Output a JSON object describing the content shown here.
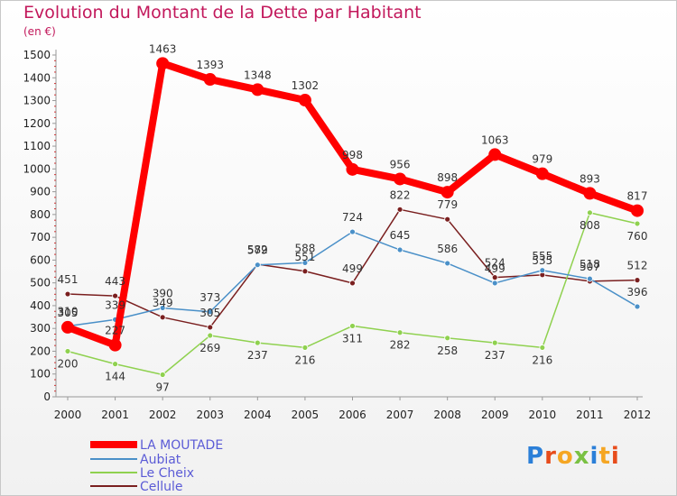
{
  "chart_data": {
    "type": "line",
    "title": "Evolution du Montant de la Dette par Habitant",
    "ylabel": "(en €)",
    "x": [
      "2000",
      "2001",
      "2002",
      "2003",
      "2004",
      "2005",
      "2006",
      "2007",
      "2008",
      "2009",
      "2010",
      "2011",
      "2012"
    ],
    "ylim": [
      0,
      1500
    ],
    "yticks": [
      0,
      100,
      200,
      300,
      400,
      500,
      600,
      700,
      800,
      900,
      1000,
      1100,
      1200,
      1300,
      1400,
      1500
    ],
    "grid": false,
    "legend_position": "bottom-left",
    "series": [
      {
        "name": "LA MOUTADE",
        "color": "#ff0000",
        "values": [
          305,
          227,
          1463,
          1393,
          1348,
          1302,
          998,
          956,
          898,
          1063,
          979,
          893,
          817
        ]
      },
      {
        "name": "Aubiat",
        "color": "#4a90c8",
        "values": [
          310,
          339,
          390,
          373,
          579,
          588,
          724,
          645,
          586,
          499,
          555,
          518,
          396
        ]
      },
      {
        "name": "Le Cheix",
        "color": "#8fd14f",
        "values": [
          200,
          144,
          97,
          269,
          237,
          216,
          311,
          282,
          258,
          237,
          216,
          808,
          760
        ]
      },
      {
        "name": "Cellule",
        "color": "#7a1f1f",
        "values": [
          451,
          443,
          349,
          305,
          582,
          551,
          499,
          822,
          779,
          524,
          535,
          507,
          512
        ]
      }
    ]
  },
  "logo": {
    "text": "Proxiti",
    "letters": [
      "P",
      "r",
      "o",
      "x",
      "i",
      "t",
      "i"
    ]
  }
}
